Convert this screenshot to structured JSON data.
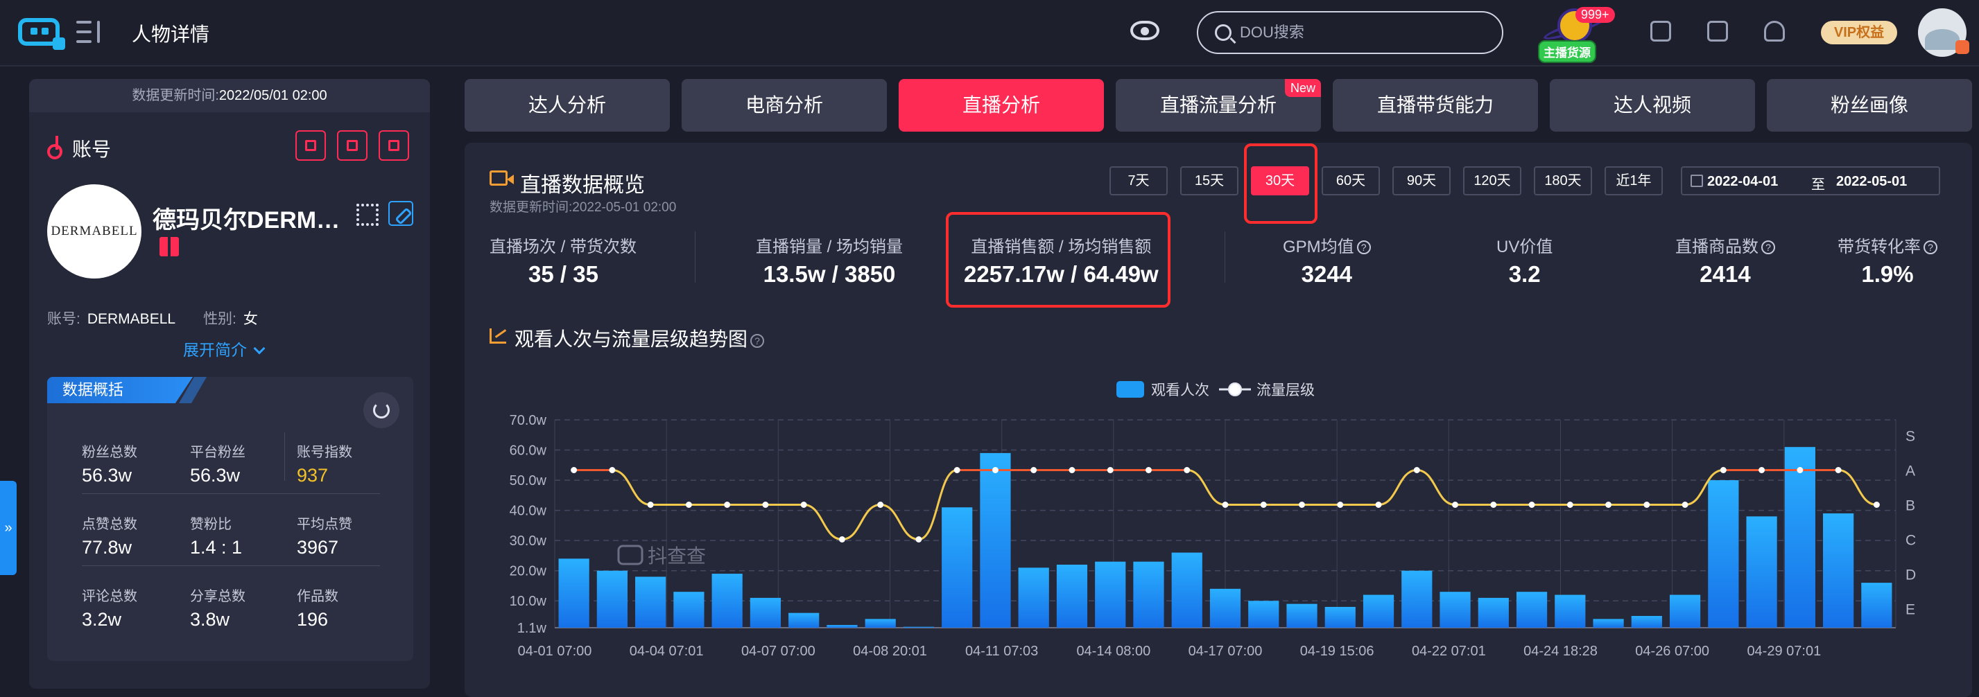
{
  "header": {
    "page_title": "人物详情",
    "search_placeholder": "DOU搜索",
    "anchor_count": "999+",
    "anchor_label": "主播货源",
    "vip_label": "VIP权益"
  },
  "profile": {
    "update_label": "数据更新时间:",
    "update_time": "2022/05/01 02:00",
    "account_label": "账号",
    "shop_name": "德玛贝尔DERMABELL",
    "avatar_text": "DERMABELL",
    "account_id_label": "账号:",
    "account_id": "DERMABELL",
    "gender_label": "性别:",
    "gender": "女",
    "expand_label": "展开简介"
  },
  "summary": {
    "tab_label": "数据概括",
    "stats": [
      {
        "label": "粉丝总数",
        "value": "56.3w"
      },
      {
        "label": "平台粉丝",
        "value": "56.3w"
      },
      {
        "label": "账号指数",
        "value": "937"
      },
      {
        "label": "点赞总数",
        "value": "77.8w"
      },
      {
        "label": "赞粉比",
        "value": "1.4 : 1"
      },
      {
        "label": "平均点赞",
        "value": "3967"
      },
      {
        "label": "评论总数",
        "value": "3.2w"
      },
      {
        "label": "分享总数",
        "value": "3.8w"
      },
      {
        "label": "作品数",
        "value": "196"
      }
    ]
  },
  "tabs": [
    {
      "label": "达人分析"
    },
    {
      "label": "电商分析"
    },
    {
      "label": "直播分析"
    },
    {
      "label": "直播流量分析",
      "badge": "New"
    },
    {
      "label": "直播带货能力"
    },
    {
      "label": "达人视频"
    },
    {
      "label": "粉丝画像"
    }
  ],
  "overview": {
    "title": "直播数据概览",
    "update": "数据更新时间:2022-05-01 02:00",
    "ranges": [
      "7天",
      "15天",
      "30天",
      "60天",
      "90天",
      "120天",
      "180天",
      "近1年"
    ],
    "selected_range": "30天",
    "date_start": "2022-04-01",
    "date_sep": "至",
    "date_end": "2022-05-01",
    "metrics": [
      {
        "label": "直播场次 / 带货次数",
        "value": "35 / 35"
      },
      {
        "label": "直播销量 / 场均销量",
        "value": "13.5w / 3850"
      },
      {
        "label": "直播销售额 / 场均销售额",
        "value": "2257.17w / 64.49w"
      },
      {
        "label": "GPM均值",
        "value": "3244",
        "help": "?"
      },
      {
        "label": "UV价值",
        "value": "3.2"
      },
      {
        "label": "直播商品数",
        "value": "2414",
        "help": "?"
      },
      {
        "label": "带货转化率",
        "value": "1.9%",
        "help": "?"
      }
    ]
  },
  "trend": {
    "title": "观看人次与流量层级趋势图",
    "help": "?",
    "watermark": "抖查查"
  },
  "chart_data": {
    "type": "bar",
    "series": [
      {
        "name": "观看人次",
        "type": "bar",
        "values": [
          24,
          20,
          18,
          13,
          19,
          11,
          6,
          2,
          4,
          1,
          41,
          59,
          21,
          22,
          23,
          23,
          26,
          14,
          10,
          9,
          8,
          12,
          20,
          13,
          11,
          13,
          12,
          4,
          5,
          12,
          50,
          38,
          61,
          39,
          16
        ]
      },
      {
        "name": "流量层级",
        "type": "line",
        "values": [
          "A",
          "A",
          "B",
          "B",
          "B",
          "B",
          "B",
          "C",
          "B",
          "C",
          "A",
          "A",
          "A",
          "A",
          "A",
          "A",
          "A",
          "B",
          "B",
          "B",
          "B",
          "B",
          "A",
          "B",
          "B",
          "B",
          "B",
          "B",
          "B",
          "B",
          "A",
          "A",
          "A",
          "A",
          "B"
        ]
      }
    ],
    "x_tick_labels": [
      "04-01 07:00",
      "04-04 07:01",
      "04-07 07:00",
      "04-08 20:01",
      "04-11 07:03",
      "04-14 08:00",
      "04-17 07:00",
      "04-19 15:06",
      "04-22 07:01",
      "04-24 18:28",
      "04-26 07:00",
      "04-29 07:01"
    ],
    "y_tick_labels": [
      "1.1w",
      "10.0w",
      "20.0w",
      "30.0w",
      "40.0w",
      "50.0w",
      "60.0w",
      "70.0w"
    ],
    "y_unit": "w",
    "ylim": [
      1.1,
      70
    ],
    "y2_tick_labels": [
      "E",
      "D",
      "C",
      "B",
      "A",
      "S"
    ],
    "legend_position": "top-center",
    "grid": true,
    "colors": {
      "bar": "#1e9bf5",
      "line_high": "#f0582f",
      "line_low": "#f2c94c"
    }
  }
}
